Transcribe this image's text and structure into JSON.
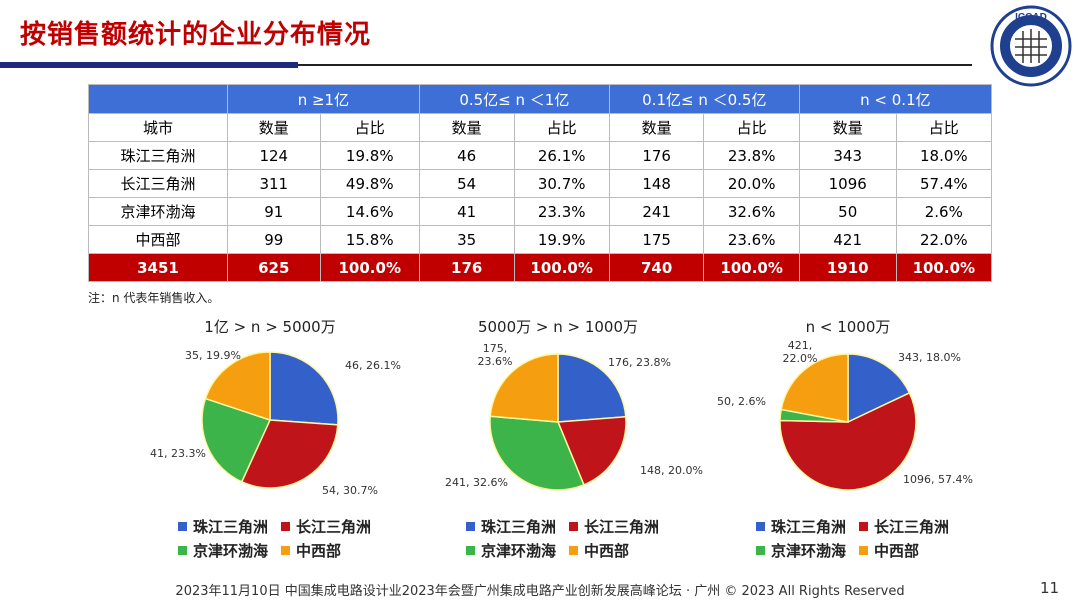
{
  "title": "按销售额统计的企业分布情况",
  "logo_text": "ICCAD",
  "table": {
    "groups": [
      "n ≥1亿",
      "0.5亿≤ n ＜1亿",
      "0.1亿≤ n ＜0.5亿",
      "n < 0.1亿"
    ],
    "subheader": [
      "城市",
      "数量",
      "占比",
      "数量",
      "占比",
      "数量",
      "占比",
      "数量",
      "占比"
    ],
    "rows": [
      [
        "珠江三角洲",
        "124",
        "19.8%",
        "46",
        "26.1%",
        "176",
        "23.8%",
        "343",
        "18.0%"
      ],
      [
        "长江三角洲",
        "311",
        "49.8%",
        "54",
        "30.7%",
        "148",
        "20.0%",
        "1096",
        "57.4%"
      ],
      [
        "京津环渤海",
        "91",
        "14.6%",
        "41",
        "23.3%",
        "241",
        "32.6%",
        "50",
        "2.6%"
      ],
      [
        "中西部",
        "99",
        "15.8%",
        "35",
        "19.9%",
        "175",
        "23.6%",
        "421",
        "22.0%"
      ]
    ],
    "total": [
      "3451",
      "625",
      "100.0%",
      "176",
      "100.0%",
      "740",
      "100.0%",
      "1910",
      "100.0%"
    ],
    "colors": {
      "header": "#3e6fd6",
      "total": "#c00000"
    }
  },
  "note": "注：n 代表年销售收入。",
  "legend": [
    "珠江三角洲",
    "长江三角洲",
    "京津环渤海",
    "中西部"
  ],
  "colors": [
    "#3461c9",
    "#c0141b",
    "#3cb44a",
    "#f59f10"
  ],
  "chart_data": [
    {
      "type": "pie",
      "title": "1亿 > n > 5000万",
      "categories": [
        "珠江三角洲",
        "长江三角洲",
        "京津环渤海",
        "中西部"
      ],
      "values": [
        46,
        54,
        41,
        35
      ],
      "labels": [
        "46, 26.1%",
        "54, 30.7%",
        "41, 23.3%",
        "35, 19.9%"
      ],
      "legend": "bottom"
    },
    {
      "type": "pie",
      "title": "5000万 > n > 1000万",
      "categories": [
        "珠江三角洲",
        "长江三角洲",
        "京津环渤海",
        "中西部"
      ],
      "values": [
        176,
        148,
        241,
        175
      ],
      "labels": [
        "176, 23.8%",
        "148, 20.0%",
        "241, 32.6%",
        "175, 23.6%"
      ],
      "legend": "bottom"
    },
    {
      "type": "pie",
      "title": "n < 1000万",
      "categories": [
        "珠江三角洲",
        "长江三角洲",
        "京津环渤海",
        "中西部"
      ],
      "values": [
        343,
        1096,
        50,
        421
      ],
      "labels": [
        "343, 18.0%",
        "1096, 57.4%",
        "50, 2.6%",
        "421, 22.0%"
      ],
      "legend": "bottom"
    }
  ],
  "footer": "2023年11月10日 中国集成电路设计业2023年会暨广州集成电路产业创新发展高峰论坛 · 广州 © 2023 All Rights Reserved",
  "page_number": "11"
}
